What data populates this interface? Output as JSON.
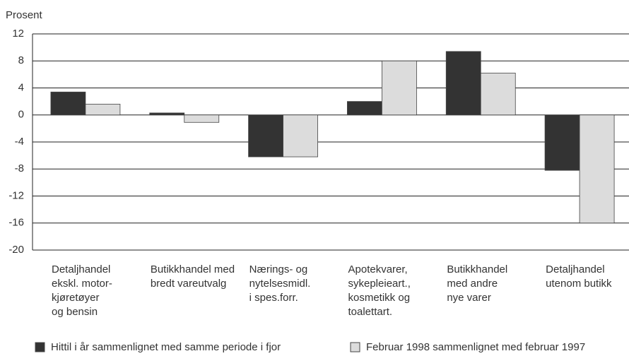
{
  "chart_data": {
    "type": "bar",
    "ylabel": "Prosent",
    "categories": [
      "Detaljhandel\nekskl. motor-\nkjøretøyer\nog bensin",
      "Butikkhandel med\nbredt vareutvalg",
      "Nærings- og\nnytelsesmidl.\ni spes.forr.",
      "Apotekvarer,\nsykepleieart.,\nkosmetikk og\ntoalettart.",
      "Butikkhandel\nmed andre\nnye varer",
      "Detaljhandel\nutenom butikk"
    ],
    "series": [
      {
        "name": "Hittil i år sammenlignet med samme periode i fjor",
        "color": "#333333",
        "values": [
          3.4,
          0.3,
          -6.2,
          2.0,
          9.4,
          -8.2
        ]
      },
      {
        "name": "Februar 1998 sammenlignet med februar 1997",
        "color": "#dcdcdc",
        "values": [
          1.6,
          -1.1,
          -6.2,
          8.0,
          6.2,
          -16.0
        ]
      }
    ],
    "ylim": [
      -20,
      12
    ],
    "yticks": [
      -20,
      -16,
      -12,
      -8,
      -4,
      0,
      4,
      8,
      12
    ],
    "grid": true
  }
}
